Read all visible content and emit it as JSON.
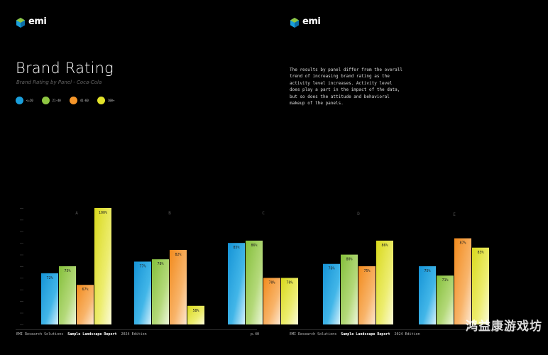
{
  "brand": {
    "logo_text": "emi"
  },
  "title": "Brand Rating",
  "subtitle": "Brand Rating by Panel - Coca-Cola",
  "description": "The results by panel differ from the overall trend of increasing brand rating as the activity level increases. Activity level does play a part in the impact of the data, but so does the attitude and behavioral makeup of the panels.",
  "footer_left": {
    "company": "EMI Research Solutions",
    "report": "Sample Landscape Report",
    "edition": "2024 Edition",
    "page": "p.40"
  },
  "footer_right": {
    "company": "EMI Research Solutions",
    "report": "Sample Landscape Report",
    "edition": "2024 Edition"
  },
  "watermark": "鸿益康游戏坊",
  "colors": {
    "series1": "#1a9fdc",
    "series2": "#8fc642",
    "series3": "#f5962a",
    "series4": "#e2e22a"
  },
  "chart_data": {
    "type": "bar",
    "title": "Brand Rating by Panel - Coca-Cola",
    "categories": [
      "A",
      "B",
      "C",
      "D",
      "E"
    ],
    "series": [
      {
        "name": "<=20",
        "values": [
          72,
          77,
          85,
          76,
          75
        ]
      },
      {
        "name": "21-40",
        "values": [
          75,
          78,
          86,
          80,
          71
        ]
      },
      {
        "name": "41-60",
        "values": [
          67,
          82,
          70,
          75,
          87
        ]
      },
      {
        "name": "100+",
        "values": [
          100,
          58,
          70,
          86,
          83
        ]
      }
    ],
    "data_labels": [
      [
        "72%",
        "75%",
        "67%",
        "100%"
      ],
      [
        "77%",
        "78%",
        "82%",
        "58%"
      ],
      [
        "85%",
        "86%",
        "70%",
        "70%"
      ],
      [
        "76%",
        "80%",
        "75%",
        "86%"
      ],
      [
        "75%",
        "71%",
        "87%",
        "83%"
      ]
    ],
    "ylim": [
      50,
      100
    ],
    "legend_position": "top-left"
  }
}
